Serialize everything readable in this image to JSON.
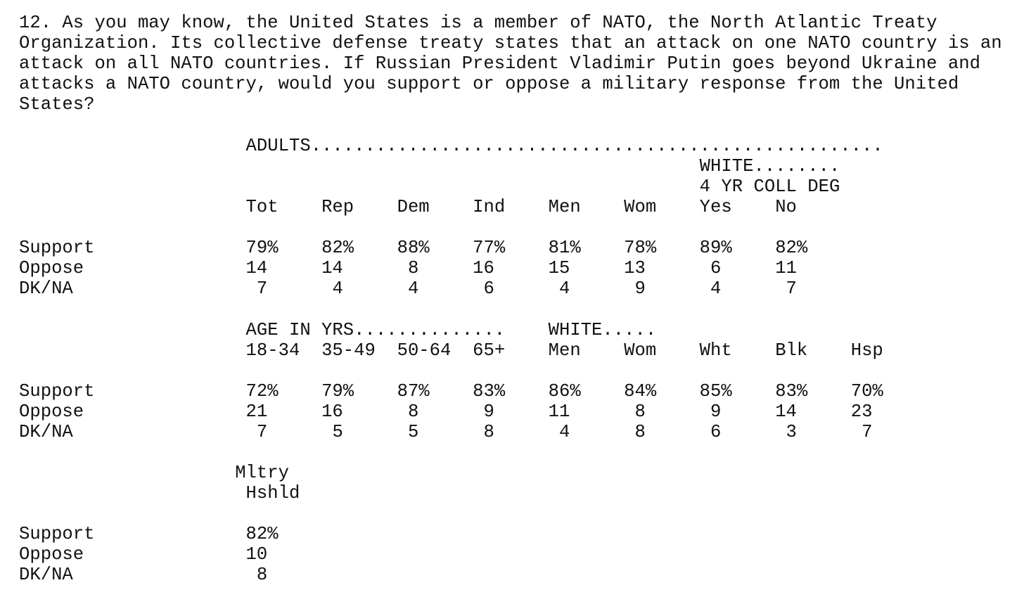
{
  "question": "12. As you may know, the United States is a member of NATO, the North Atlantic Treaty Organization. Its collective defense treaty states that an attack on one NATO country is an attack on all NATO countries. If Russian President Vladimir Putin goes beyond Ukraine and attacks a NATO country, would you support or oppose a military response from the United States?",
  "tables": [
    {
      "banners": [
        "ADULTS.....................................................",
        "WHITE........",
        "4 YR COLL DEG"
      ],
      "columns": [
        "Tot",
        "Rep",
        "Dem",
        "Ind",
        "Men",
        "Wom",
        "Yes",
        "No"
      ],
      "rows": [
        {
          "label": "Support",
          "values": [
            "79%",
            "82%",
            "88%",
            "77%",
            "81%",
            "78%",
            "89%",
            "82%"
          ]
        },
        {
          "label": "Oppose",
          "values": [
            "14",
            "14",
            "8",
            "16",
            "15",
            "13",
            "6",
            "11"
          ]
        },
        {
          "label": "DK/NA",
          "values": [
            "7",
            "4",
            "4",
            "6",
            "4",
            "9",
            "4",
            "7"
          ]
        }
      ]
    },
    {
      "banners": [
        "AGE IN YRS..............",
        "WHITE....."
      ],
      "columns": [
        "18-34",
        "35-49",
        "50-64",
        "65+",
        "Men",
        "Wom",
        "Wht",
        "Blk",
        "Hsp"
      ],
      "rows": [
        {
          "label": "Support",
          "values": [
            "72%",
            "79%",
            "87%",
            "83%",
            "86%",
            "84%",
            "85%",
            "83%",
            "70%"
          ]
        },
        {
          "label": "Oppose",
          "values": [
            "21",
            "16",
            "8",
            "9",
            "11",
            "8",
            "9",
            "14",
            "23"
          ]
        },
        {
          "label": "DK/NA",
          "values": [
            "7",
            "5",
            "5",
            "8",
            "4",
            "8",
            "6",
            "3",
            "7"
          ]
        }
      ]
    },
    {
      "banners": [
        "Mltry"
      ],
      "columns": [
        "Hshld"
      ],
      "rows": [
        {
          "label": "Support",
          "values": [
            "82%"
          ]
        },
        {
          "label": "Oppose",
          "values": [
            "10"
          ]
        },
        {
          "label": "DK/NA",
          "values": [
            "8"
          ]
        }
      ]
    }
  ]
}
